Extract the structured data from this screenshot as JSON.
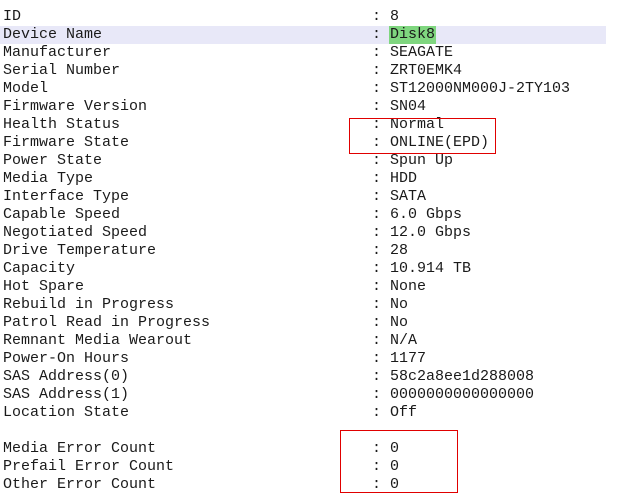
{
  "properties": [
    {
      "label": "ID",
      "value": "8"
    },
    {
      "label": "Device Name",
      "value": "Disk8",
      "selected": true
    },
    {
      "label": "Manufacturer",
      "value": "SEAGATE"
    },
    {
      "label": "Serial Number",
      "value": "ZRT0EMK4"
    },
    {
      "label": "Model",
      "value": "ST12000NM000J-2TY103"
    },
    {
      "label": "Firmware Version",
      "value": "SN04"
    },
    {
      "label": "Health Status",
      "value": "Normal"
    },
    {
      "label": "Firmware State",
      "value": "ONLINE(EPD)"
    },
    {
      "label": "Power State",
      "value": "Spun Up"
    },
    {
      "label": "Media Type",
      "value": "HDD"
    },
    {
      "label": "Interface Type",
      "value": "SATA"
    },
    {
      "label": "Capable Speed",
      "value": "6.0 Gbps"
    },
    {
      "label": "Negotiated Speed",
      "value": "12.0 Gbps"
    },
    {
      "label": "Drive Temperature",
      "value": "28"
    },
    {
      "label": "Capacity",
      "value": "10.914 TB"
    },
    {
      "label": "Hot Spare",
      "value": "None"
    },
    {
      "label": "Rebuild in Progress",
      "value": "No"
    },
    {
      "label": "Patrol Read in Progress",
      "value": "No"
    },
    {
      "label": "Remnant Media Wearout",
      "value": "N/A"
    },
    {
      "label": "Power-On Hours",
      "value": "1177"
    },
    {
      "label": "SAS Address(0)",
      "value": "58c2a8ee1d288008"
    },
    {
      "label": "SAS Address(1)",
      "value": "0000000000000000"
    },
    {
      "label": "Location State",
      "value": "Off"
    },
    {
      "label": "Media Error Count",
      "value": "0"
    },
    {
      "label": "Prefail Error Count",
      "value": "0"
    },
    {
      "label": "Other Error Count",
      "value": "0"
    }
  ],
  "separator": ":",
  "colors": {
    "selection": "#e8e8f8",
    "highlight": "#7fd67f",
    "annotation_box": "#e00000"
  }
}
